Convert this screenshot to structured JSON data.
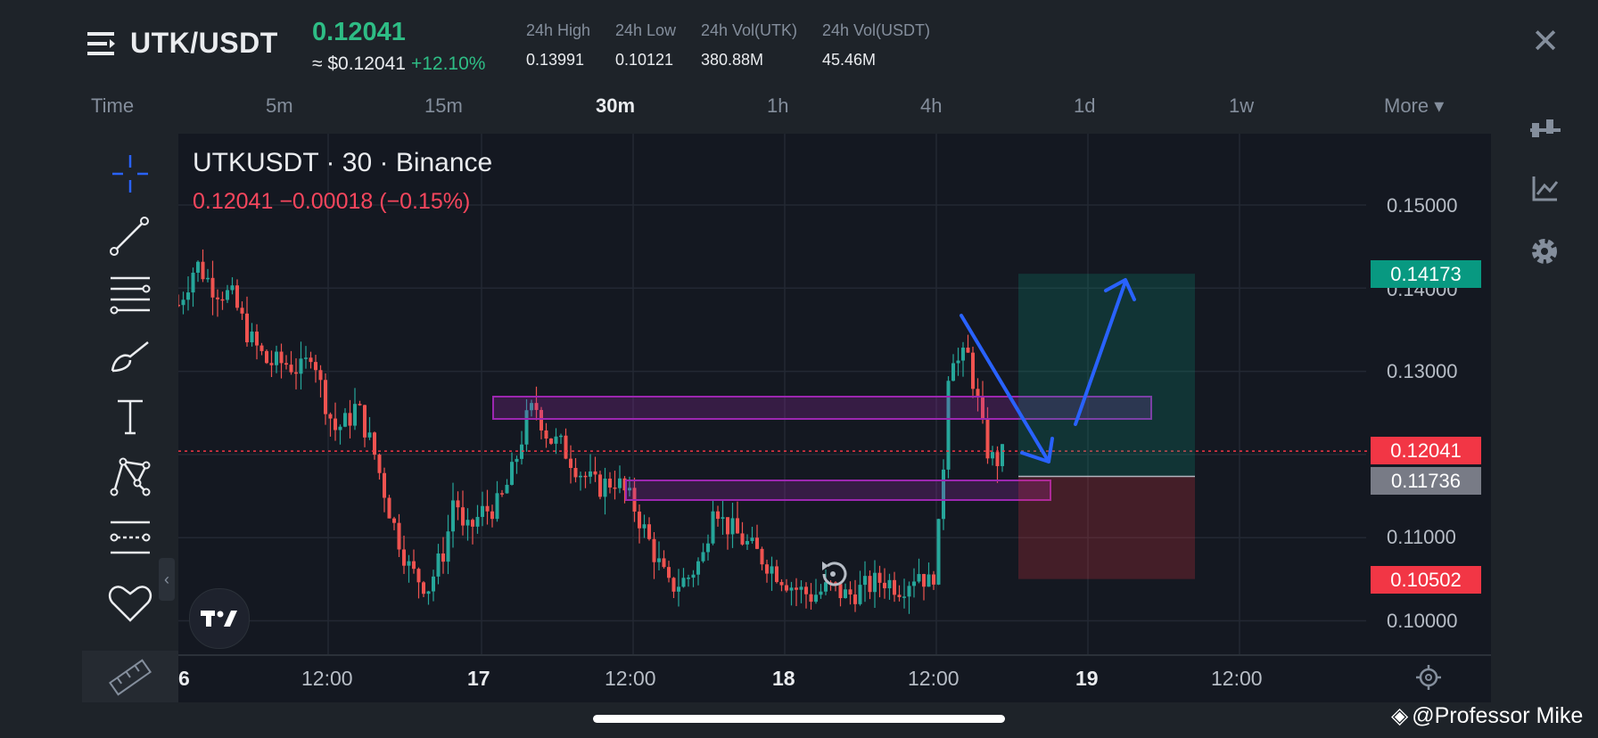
{
  "header": {
    "pair": "UTK/USDT",
    "last_price": "0.12041",
    "usd_price": "≈ $0.12041",
    "change_pct": "+12.10%",
    "stats": [
      {
        "label": "24h High",
        "value": "0.13991"
      },
      {
        "label": "24h Low",
        "value": "0.10121"
      },
      {
        "label": "24h Vol(UTK)",
        "value": "380.88M"
      },
      {
        "label": "24h Vol(USDT)",
        "value": "45.46M"
      }
    ],
    "close_label": "✕"
  },
  "timeframes": {
    "items": [
      "Time",
      "5m",
      "15m",
      "30m",
      "1h",
      "4h",
      "1d",
      "1w",
      "More ▾"
    ],
    "active": "30m"
  },
  "chart": {
    "title": "UTKUSDT · 30 · Binance",
    "ohlc": "0.12041  −0.00018 (−0.15%)",
    "y_ticks": [
      "0.15000",
      "0.14000",
      "0.13000",
      "0.11000",
      "0.10000"
    ],
    "x_ticks": [
      {
        "label": "6",
        "bold": true
      },
      {
        "label": "12:00",
        "bold": false
      },
      {
        "label": "17",
        "bold": true
      },
      {
        "label": "12:00",
        "bold": false
      },
      {
        "label": "18",
        "bold": true
      },
      {
        "label": "12:00",
        "bold": false
      },
      {
        "label": "19",
        "bold": true
      },
      {
        "label": "12:00",
        "bold": false
      }
    ],
    "tags": {
      "target": "0.14173",
      "current": "0.12041",
      "entry": "0.11736",
      "stop": "0.10502"
    },
    "colors": {
      "up": "#26a69a",
      "down": "#ef5350",
      "zone": "#9c27b0",
      "arrow": "#2962ff",
      "target_tag": "#089981",
      "current_tag": "#f23645",
      "entry_tag": "#787b86"
    }
  },
  "left_toolbar": [
    "crosshair-icon",
    "trendline-icon",
    "fib-icon",
    "brush-icon",
    "text-icon",
    "pattern-icon",
    "forecast-icon",
    "favorite-icon",
    "ruler-icon"
  ],
  "right_toolbar": [
    "indicator-icon",
    "chart-type-icon",
    "settings-icon"
  ],
  "watermark": "@Professor Mike"
}
